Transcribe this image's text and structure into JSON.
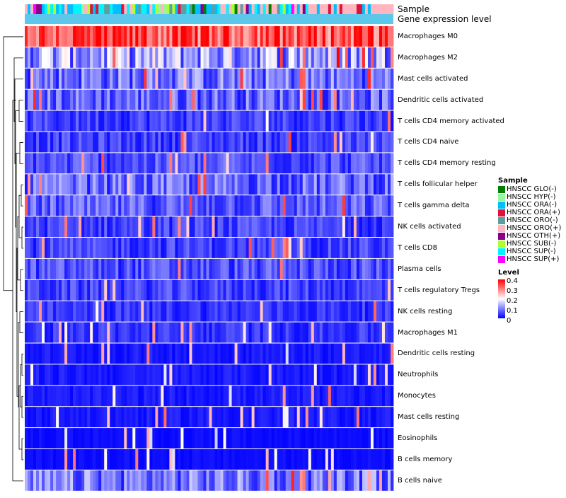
{
  "chart_data": {
    "type": "heatmap",
    "title": "",
    "n_samples": 130,
    "annotations": [
      "Sample",
      "Gene expression level"
    ],
    "rows": [
      {
        "label": "Macrophages M0",
        "base": 0.34
      },
      {
        "label": "Macrophages M2",
        "base": 0.13
      },
      {
        "label": "Mast cells activated",
        "base": 0.09
      },
      {
        "label": "Dendritic cells activated",
        "base": 0.08
      },
      {
        "label": "T cells CD4 memory activated",
        "base": 0.05
      },
      {
        "label": "T cells CD4 naive",
        "base": 0.05
      },
      {
        "label": "T cells CD4 memory resting",
        "base": 0.06
      },
      {
        "label": "T cells follicular helper",
        "base": 0.08
      },
      {
        "label": "T cells gamma delta",
        "base": 0.07
      },
      {
        "label": "NK cells activated",
        "base": 0.05
      },
      {
        "label": "T cells CD8",
        "base": 0.05
      },
      {
        "label": "Plasma cells",
        "base": 0.06
      },
      {
        "label": "T cells regulatory  Tregs",
        "base": 0.05
      },
      {
        "label": "NK cells resting",
        "base": 0.04
      },
      {
        "label": "Macrophages M1",
        "base": 0.04
      },
      {
        "label": "Dendritic cells resting",
        "base": 0.02
      },
      {
        "label": "Neutrophils",
        "base": 0.02
      },
      {
        "label": "Monocytes",
        "base": 0.02
      },
      {
        "label": "Mast cells resting",
        "base": 0.02
      },
      {
        "label": "Eosinophils",
        "base": 0.01
      },
      {
        "label": "B cells memory",
        "base": 0.01
      },
      {
        "label": "B cells naive",
        "base": 0.09
      }
    ],
    "legend_sample": {
      "title": "Sample",
      "entries": [
        {
          "label": "HNSCC GLO(-)",
          "color": "#007F00"
        },
        {
          "label": "HNSCC HYP(-)",
          "color": "#98F5A0"
        },
        {
          "label": "HNSCC ORA(-)",
          "color": "#00BFFF"
        },
        {
          "label": "HNSCC ORA(+)",
          "color": "#DC143C"
        },
        {
          "label": "HNSCC ORO(-)",
          "color": "#5F9EA0"
        },
        {
          "label": "HNSCC ORO(+)",
          "color": "#FFB6C1"
        },
        {
          "label": "HNSCC OTH(+)",
          "color": "#8B008B"
        },
        {
          "label": "HNSCC SUB(-)",
          "color": "#ADFF2F"
        },
        {
          "label": "HNSCC SUP(-)",
          "color": "#00F5FF"
        },
        {
          "label": "HNSCC SUP(+)",
          "color": "#FF00FF"
        }
      ]
    },
    "legend_level": {
      "title": "Level",
      "ticks": [
        "0.4",
        "0.3",
        "0.2",
        "0.1",
        "0"
      ],
      "range": [
        0,
        0.4
      ],
      "colors": [
        "#FF0000",
        "#FFFFFF",
        "#0000FF"
      ]
    },
    "gene_expression_color": "#5BC8EB"
  }
}
